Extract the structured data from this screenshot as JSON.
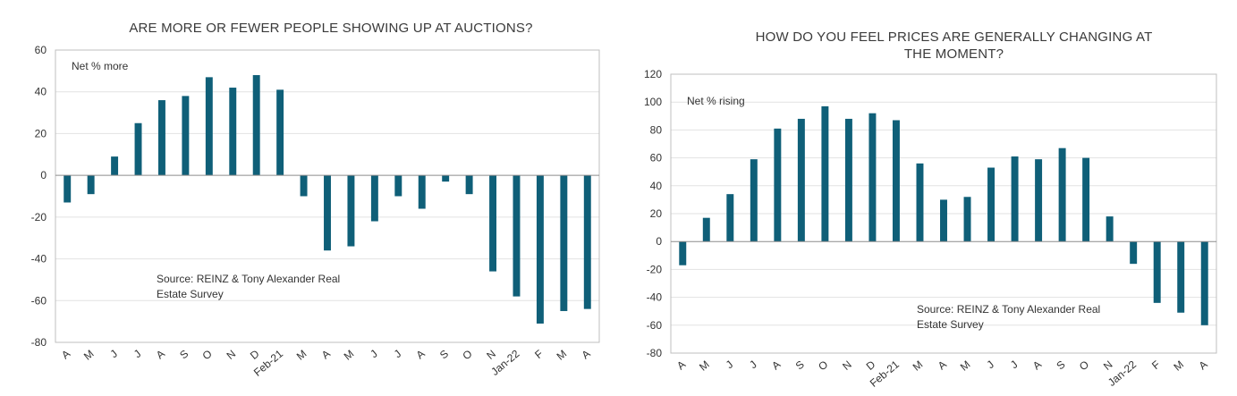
{
  "chart_data": [
    {
      "type": "bar",
      "title": "ARE MORE OR FEWER PEOPLE SHOWING UP AT AUCTIONS?",
      "series_label": "Net % more",
      "source": [
        "Source: REINZ & Tony Alexander Real",
        "Estate Survey"
      ],
      "categories": [
        "A",
        "M",
        "J",
        "J",
        "A",
        "S",
        "O",
        "N",
        "D",
        "Feb-21",
        "M",
        "A",
        "M",
        "J",
        "J",
        "A",
        "S",
        "O",
        "N",
        "Jan-22",
        "F",
        "M",
        "A"
      ],
      "values": [
        -13,
        -9,
        9,
        25,
        36,
        38,
        47,
        42,
        48,
        41,
        -10,
        -36,
        -34,
        -22,
        -10,
        -16,
        -3,
        -9,
        -46,
        -58,
        -71,
        -65,
        -64
      ],
      "ylim": [
        -80,
        60
      ],
      "yticks": [
        "-80",
        "-60",
        "-40",
        "-20",
        "0",
        "20",
        "40",
        "60"
      ],
      "bar_color": "#0f5f78",
      "grid": true,
      "xlabel": "",
      "ylabel": ""
    },
    {
      "type": "bar",
      "title": "HOW DO YOU FEEL PRICES ARE GENERALLY CHANGING AT THE MOMENT?",
      "title_lines": [
        "HOW DO YOU FEEL PRICES ARE GENERALLY CHANGING AT",
        "THE MOMENT?"
      ],
      "series_label": "Net % rising",
      "source": [
        "Source: REINZ & Tony Alexander Real",
        "Estate Survey"
      ],
      "categories": [
        "A",
        "M",
        "J",
        "J",
        "A",
        "S",
        "O",
        "N",
        "D",
        "Feb-21",
        "M",
        "A",
        "M",
        "J",
        "J",
        "A",
        "S",
        "O",
        "N",
        "Jan-22",
        "F",
        "M",
        "A"
      ],
      "values": [
        -17,
        17,
        34,
        59,
        81,
        88,
        97,
        88,
        92,
        87,
        56,
        30,
        32,
        53,
        61,
        59,
        67,
        60,
        18,
        -16,
        -44,
        -51,
        -60
      ],
      "ylim": [
        -80,
        120
      ],
      "yticks": [
        "-80",
        "-60",
        "-40",
        "-20",
        "0",
        "20",
        "40",
        "60",
        "80",
        "100",
        "120"
      ],
      "bar_color": "#0f5f78",
      "grid": true,
      "xlabel": "",
      "ylabel": ""
    }
  ]
}
